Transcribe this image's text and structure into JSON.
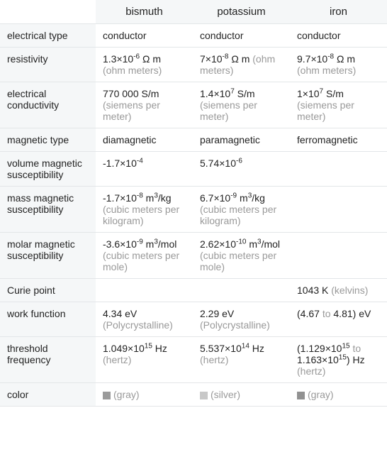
{
  "table": {
    "columns": [
      "bismuth",
      "potassium",
      "iron"
    ],
    "column_widths": {
      "label": 135,
      "data": 137
    },
    "border_color": "#e3e6e8",
    "header_bg": "#f5f7f8",
    "unit_color": "#999999",
    "font_family": "Arial",
    "font_size_body": 14,
    "font_size_header": 15,
    "rows": [
      {
        "label": "electrical type",
        "cells": [
          {
            "html": "conductor"
          },
          {
            "html": "conductor"
          },
          {
            "html": "conductor"
          }
        ]
      },
      {
        "label": "resistivity",
        "cells": [
          {
            "html": "1.3×10<sup>-6</sup> Ω m <span class=\"unit\">(ohm meters)</span>"
          },
          {
            "html": "7×10<sup>-8</sup> Ω m <span class=\"unit\">(ohm meters)</span>"
          },
          {
            "html": "9.7×10<sup>-8</sup> Ω m <span class=\"unit\">(ohm meters)</span>"
          }
        ]
      },
      {
        "label": "electrical conductivity",
        "cells": [
          {
            "html": "770 000 S/m <span class=\"unit\">(siemens per meter)</span>"
          },
          {
            "html": "1.4×10<sup>7</sup> S/m <span class=\"unit\">(siemens per meter)</span>"
          },
          {
            "html": "1×10<sup>7</sup> S/m <span class=\"unit\">(siemens per meter)</span>"
          }
        ]
      },
      {
        "label": "magnetic type",
        "cells": [
          {
            "html": "diamagnetic"
          },
          {
            "html": "paramagnetic"
          },
          {
            "html": "ferromagnetic"
          }
        ]
      },
      {
        "label": "volume magnetic susceptibility",
        "cells": [
          {
            "html": "-1.7×10<sup>-4</sup>"
          },
          {
            "html": "5.74×10<sup>-6</sup>"
          },
          {
            "html": ""
          }
        ]
      },
      {
        "label": "mass magnetic susceptibility",
        "cells": [
          {
            "html": "-1.7×10<sup>-8</sup> m<sup>3</sup>/kg <span class=\"unit\">(cubic meters per kilogram)</span>"
          },
          {
            "html": "6.7×10<sup>-9</sup> m<sup>3</sup>/kg <span class=\"unit\">(cubic meters per kilogram)</span>"
          },
          {
            "html": ""
          }
        ]
      },
      {
        "label": "molar magnetic susceptibility",
        "cells": [
          {
            "html": "-3.6×10<sup>-9</sup> m<sup>3</sup>/mol <span class=\"unit\">(cubic meters per mole)</span>"
          },
          {
            "html": "2.62×10<sup>-10</sup> m<sup>3</sup>/mol <span class=\"unit\">(cubic meters per mole)</span>"
          },
          {
            "html": ""
          }
        ]
      },
      {
        "label": "Curie point",
        "cells": [
          {
            "html": ""
          },
          {
            "html": ""
          },
          {
            "html": "1043 K <span class=\"unit\">(kelvins)</span>"
          }
        ]
      },
      {
        "label": "work function",
        "cells": [
          {
            "html": "4.34 eV <span class=\"unit\">(Polycrystalline)</span>"
          },
          {
            "html": "2.29 eV <span class=\"unit\">(Polycrystalline)</span>"
          },
          {
            "html": "(4.67 <span class=\"unit\">to</span> 4.81) eV"
          }
        ]
      },
      {
        "label": "threshold frequency",
        "cells": [
          {
            "html": "1.049×10<sup>15</sup> Hz <span class=\"unit\">(hertz)</span>"
          },
          {
            "html": "5.537×10<sup>14</sup> Hz <span class=\"unit\">(hertz)</span>"
          },
          {
            "html": "(1.129×10<sup>15</sup> <span class=\"unit\">to</span> 1.163×10<sup>15</sup>) Hz <span class=\"unit\">(hertz)</span>"
          }
        ]
      },
      {
        "label": "color",
        "cells": [
          {
            "html": "<span class=\"swatch\" style=\"background:#9b9b9b\"></span><span class=\"color-label\">(gray)</span>",
            "swatch": "#9b9b9b",
            "name": "gray"
          },
          {
            "html": "<span class=\"swatch\" style=\"background:#c8c8c8\"></span><span class=\"color-label\">(silver)</span>",
            "swatch": "#c8c8c8",
            "name": "silver"
          },
          {
            "html": "<span class=\"swatch\" style=\"background:#919191\"></span><span class=\"color-label\">(gray)</span>",
            "swatch": "#919191",
            "name": "gray"
          }
        ]
      }
    ]
  }
}
